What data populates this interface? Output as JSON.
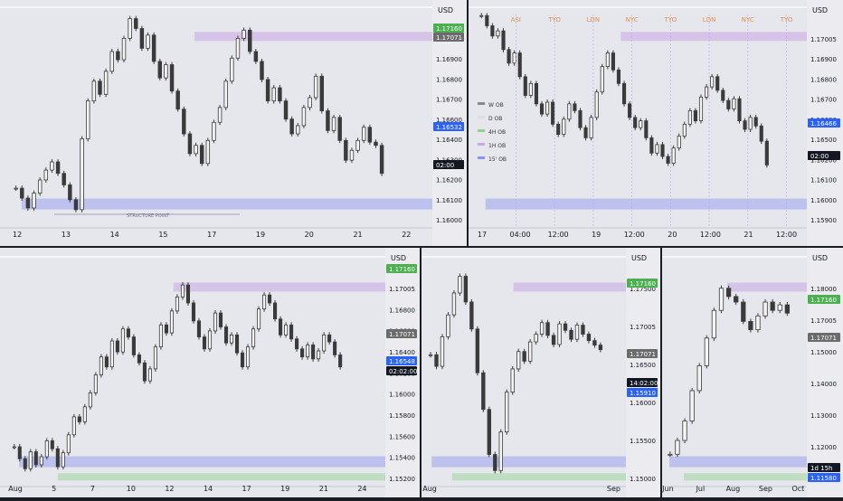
{
  "colors": {
    "background": "#e6e7ec",
    "candle": "#3a3a3a",
    "bull_zone": "#8fd18f",
    "bear_zone": "#c9a6e6",
    "blue_zone": "#8a94f0",
    "price_blue": "#2962ff",
    "price_green": "#4caf50",
    "price_gray": "#6b6b6b"
  },
  "chart_data": [
    {
      "type": "candlestick",
      "symbol": "EURUSD",
      "currency_label": "USD",
      "x_ticks": [
        "12",
        "13",
        "14",
        "15",
        "17",
        "19",
        "20",
        "21",
        "22"
      ],
      "price_ticks": [
        "1.17005",
        "1.16900",
        "1.16800",
        "1.16700",
        "1.16600",
        "1.16400",
        "1.16300",
        "1.16200",
        "1.16100",
        "1.16000"
      ],
      "price_tags": [
        {
          "text": "1.17160",
          "kind": "green"
        },
        {
          "text": "1.17071",
          "kind": "gray"
        },
        {
          "text": "1.16532",
          "kind": "blue"
        },
        {
          "text": "02:00",
          "kind": "black"
        }
      ],
      "annotations": [
        "STRUCTURE POINT"
      ],
      "ylim": [
        1.1592,
        1.1726
      ],
      "series": [
        1.1615,
        1.1609,
        1.1603,
        1.1612,
        1.162,
        1.1626,
        1.1631,
        1.1624,
        1.1617,
        1.1608,
        1.1602,
        1.1645,
        1.1668,
        1.168,
        1.1672,
        1.1686,
        1.1698,
        1.1693,
        1.1706,
        1.1718,
        1.1712,
        1.17,
        1.1708,
        1.1692,
        1.1682,
        1.169,
        1.1674,
        1.1663,
        1.1648,
        1.1636,
        1.1641,
        1.163,
        1.1644,
        1.1655,
        1.1664,
        1.168,
        1.1694,
        1.1706,
        1.1711,
        1.1698,
        1.1692,
        1.1681,
        1.1668,
        1.1676,
        1.1668,
        1.1657,
        1.1648,
        1.1653,
        1.1664,
        1.167,
        1.1683,
        1.1662,
        1.165,
        1.1658,
        1.1644,
        1.1632,
        1.1638,
        1.1644,
        1.1652,
        1.1643,
        1.1641,
        1.1624
      ]
    },
    {
      "type": "candlestick",
      "symbol": "EURUSD",
      "currency_label": "USD",
      "x_ticks": [
        "17",
        "04:00",
        "12:00",
        "19",
        "12:00",
        "20",
        "12:00",
        "21",
        "12:00"
      ],
      "price_ticks": [
        "1.17005",
        "1.16900",
        "1.16800",
        "1.16700",
        "1.16600",
        "1.16500",
        "1.16200",
        "1.16100",
        "1.16000",
        "1.15900"
      ],
      "price_tags": [
        {
          "text": "1.16466",
          "kind": "blue"
        },
        {
          "text": "02:00",
          "kind": "black"
        }
      ],
      "session_labels": [
        "ASI",
        "TYO",
        "LDN",
        "NYC",
        "TYO",
        "LDN",
        "NYC",
        "TYO"
      ],
      "legend": [
        "W OB",
        "D OB",
        "4H OB",
        "1H OB",
        "15' OB"
      ],
      "ylim": [
        1.1588,
        1.1718
      ],
      "series": [
        1.1712,
        1.1706,
        1.17,
        1.1703,
        1.1692,
        1.1684,
        1.169,
        1.1676,
        1.1665,
        1.1672,
        1.166,
        1.1654,
        1.1661,
        1.1648,
        1.1642,
        1.1651,
        1.166,
        1.1656,
        1.1646,
        1.164,
        1.1652,
        1.1667,
        1.1682,
        1.169,
        1.168,
        1.1672,
        1.166,
        1.1652,
        1.1646,
        1.165,
        1.164,
        1.1631,
        1.1636,
        1.1629,
        1.1625,
        1.1634,
        1.1641,
        1.1648,
        1.1656,
        1.165,
        1.1664,
        1.167,
        1.1676,
        1.1668,
        1.1662,
        1.1657,
        1.1663,
        1.165,
        1.1645,
        1.1652,
        1.1647,
        1.1638,
        1.1624
      ]
    },
    {
      "type": "candlestick",
      "symbol": "EURUSD",
      "currency_label": "USD",
      "x_ticks": [
        "Aug",
        "5",
        "7",
        "10",
        "12",
        "14",
        "17",
        "19",
        "21",
        "24"
      ],
      "price_ticks": [
        "1.17005",
        "1.16800",
        "1.16600",
        "1.16400",
        "1.16200",
        "1.16000",
        "1.15800",
        "1.15600",
        "1.15400",
        "1.15200"
      ],
      "price_tags": [
        {
          "text": "1.17160",
          "kind": "green"
        },
        {
          "text": "1.17071",
          "kind": "gray"
        },
        {
          "text": "1.16548",
          "kind": "blue"
        },
        {
          "text": "02:02:00",
          "kind": "black"
        }
      ],
      "ylim": [
        1.1512,
        1.1742
      ],
      "series": [
        1.155,
        1.1538,
        1.1528,
        1.1545,
        1.1532,
        1.154,
        1.1556,
        1.1548,
        1.153,
        1.1544,
        1.1562,
        1.158,
        1.1575,
        1.159,
        1.1604,
        1.1622,
        1.164,
        1.163,
        1.1656,
        1.1645,
        1.1668,
        1.166,
        1.1642,
        1.1634,
        1.1616,
        1.1628,
        1.165,
        1.1672,
        1.1664,
        1.1686,
        1.17,
        1.1712,
        1.1694,
        1.1676,
        1.166,
        1.1648,
        1.1666,
        1.1684,
        1.167,
        1.1654,
        1.1662,
        1.1644,
        1.163,
        1.165,
        1.1668,
        1.1688,
        1.1702,
        1.1694,
        1.1678,
        1.1662,
        1.1672,
        1.1658,
        1.1648,
        1.164,
        1.1652,
        1.1638,
        1.1646,
        1.1662,
        1.1655,
        1.1642,
        1.163
      ]
    },
    {
      "type": "candlestick",
      "symbol": "EURUSD",
      "currency_label": "USD",
      "x_ticks": [
        "Aug",
        "Sep"
      ],
      "price_ticks": [
        "1.17500",
        "1.17005",
        "1.16500",
        "1.16000",
        "1.15500",
        "1.15000"
      ],
      "price_tags": [
        {
          "text": "1.17160",
          "kind": "green"
        },
        {
          "text": "1.17071",
          "kind": "gray"
        },
        {
          "text": "14:02:00",
          "kind": "black"
        },
        {
          "text": "1.15910",
          "kind": "blue"
        }
      ],
      "ylim": [
        1.1438,
        1.1795
      ],
      "series": [
        1.164,
        1.1622,
        1.1668,
        1.1702,
        1.1736,
        1.1762,
        1.1722,
        1.168,
        1.1612,
        1.1555,
        1.1485,
        1.146,
        1.152,
        1.1582,
        1.1618,
        1.1645,
        1.163,
        1.166,
        1.1672,
        1.169,
        1.167,
        1.1656,
        1.1688,
        1.1678,
        1.1664,
        1.1686,
        1.1672,
        1.1662,
        1.1655,
        1.1648
      ]
    },
    {
      "type": "candlestick",
      "symbol": "EURUSD",
      "currency_label": "USD",
      "x_ticks": [
        "Jun",
        "Jul",
        "Aug",
        "Sep",
        "Oct"
      ],
      "price_ticks": [
        "1.18000",
        "1.17005",
        "1.15000",
        "1.14000",
        "1.13000",
        "1.12000",
        "1.11000"
      ],
      "price_tags": [
        {
          "text": "1.17160",
          "kind": "green"
        },
        {
          "text": "1.17071",
          "kind": "gray"
        },
        {
          "text": "1d 15h",
          "kind": "black"
        },
        {
          "text": "1.11580",
          "kind": "blue"
        }
      ],
      "ylim": [
        1.103,
        1.186
      ],
      "series": [
        1.114,
        1.119,
        1.126,
        1.137,
        1.146,
        1.156,
        1.166,
        1.174,
        1.171,
        1.169,
        1.162,
        1.159,
        1.164,
        1.169,
        1.166,
        1.168,
        1.165
      ]
    }
  ]
}
